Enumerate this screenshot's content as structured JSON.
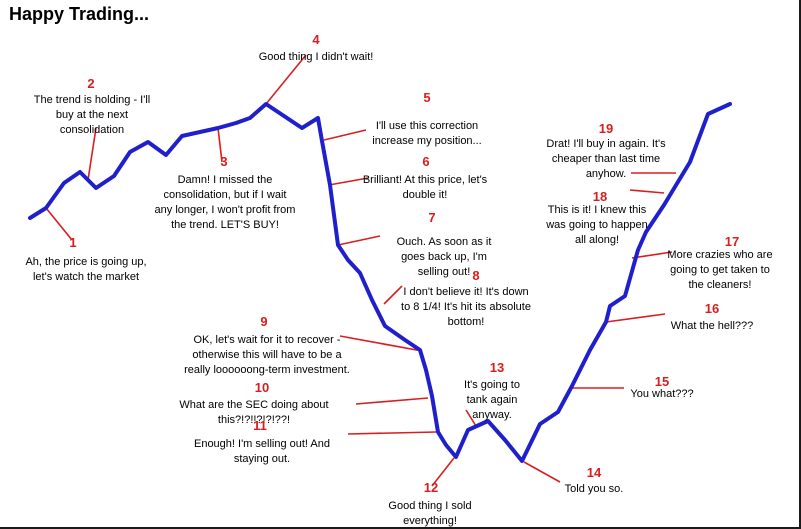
{
  "title": "Happy Trading...",
  "colors": {
    "line": "#1f1fcc",
    "leader": "#d81e1e",
    "number": "#d81e1e",
    "text": "#000000"
  },
  "annotations": [
    {
      "number": "1",
      "lines": [
        "Ah, the price is going up,",
        "let's watch the market"
      ]
    },
    {
      "number": "2",
      "lines": [
        "The trend is holding - I'll",
        "buy at the next",
        "consolidation"
      ]
    },
    {
      "number": "3",
      "lines": [
        "Damn! I missed the",
        "consolidation, but if I wait",
        "any longer, I won't profit from",
        "the trend. LET'S BUY!"
      ]
    },
    {
      "number": "4",
      "lines": [
        "Good thing I didn't wait!"
      ]
    },
    {
      "number": "5",
      "lines": [
        "I'll use this correction",
        "increase my position..."
      ]
    },
    {
      "number": "6",
      "lines": [
        "Brilliant! At this price, let's",
        "double it!"
      ]
    },
    {
      "number": "7",
      "lines": [
        "Ouch. As soon as it",
        "goes back up, I'm",
        "selling out!"
      ]
    },
    {
      "number": "8",
      "lines": [
        "I don't believe it! It's down",
        "to 8 1/4! It's hit its absolute",
        "bottom!"
      ]
    },
    {
      "number": "9",
      "lines": [
        "OK, let's wait for it to recover -",
        "otherwise this will have to be a",
        "really loooooong-term investment."
      ]
    },
    {
      "number": "10",
      "lines": [
        "What are the SEC doing about",
        "this?!?!!?!?!??!"
      ]
    },
    {
      "number": "11",
      "lines": [
        "Enough! I'm selling out! And",
        "staying out."
      ]
    },
    {
      "number": "12",
      "lines": [
        "Good thing I sold",
        "everything!"
      ]
    },
    {
      "number": "13",
      "lines": [
        "It's going to",
        "tank again",
        "anyway."
      ]
    },
    {
      "number": "14",
      "lines": [
        "Told you so."
      ]
    },
    {
      "number": "15",
      "lines": [
        "You what???"
      ]
    },
    {
      "number": "16",
      "lines": [
        "What the hell???"
      ]
    },
    {
      "number": "17",
      "lines": [
        "More crazies who are",
        "going to get taken to",
        "the cleaners!"
      ]
    },
    {
      "number": "18",
      "lines": [
        "This is it! I knew this",
        "was going to happen",
        "all along!"
      ]
    },
    {
      "number": "19",
      "lines": [
        "Drat! I'll buy in again. It's",
        "cheaper than last time",
        "anyhow."
      ]
    }
  ]
}
